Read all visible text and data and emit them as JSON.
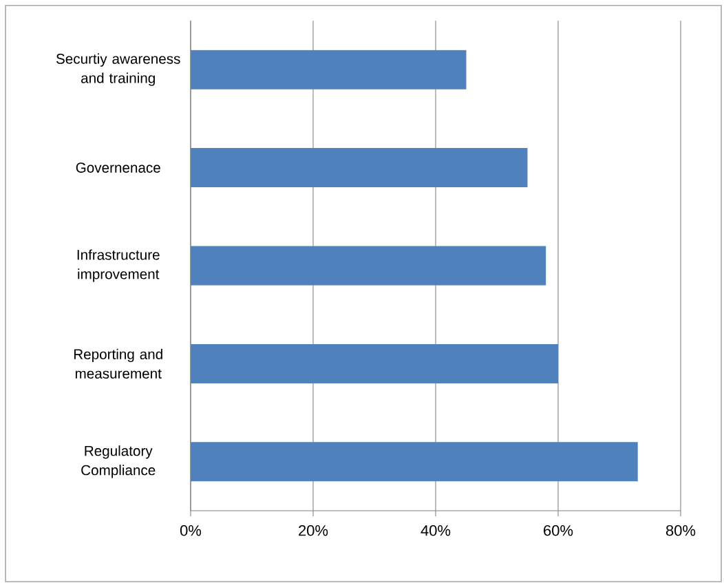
{
  "chart_data": {
    "type": "bar",
    "orientation": "horizontal",
    "categories": [
      "Securtiy awareness and training",
      "Governenace",
      "Infrastructure improvement",
      "Reporting and measurement",
      "Regulatory Compliance"
    ],
    "values": [
      45,
      55,
      58,
      60,
      73
    ],
    "color": "#4f81bd",
    "xlim": [
      0,
      80
    ],
    "xticks": [
      {
        "value": 0,
        "label": "0%"
      },
      {
        "value": 20,
        "label": "20%"
      },
      {
        "value": 40,
        "label": "40%"
      },
      {
        "value": 60,
        "label": "60%"
      },
      {
        "value": 80,
        "label": "80%"
      }
    ],
    "grid": "x"
  }
}
